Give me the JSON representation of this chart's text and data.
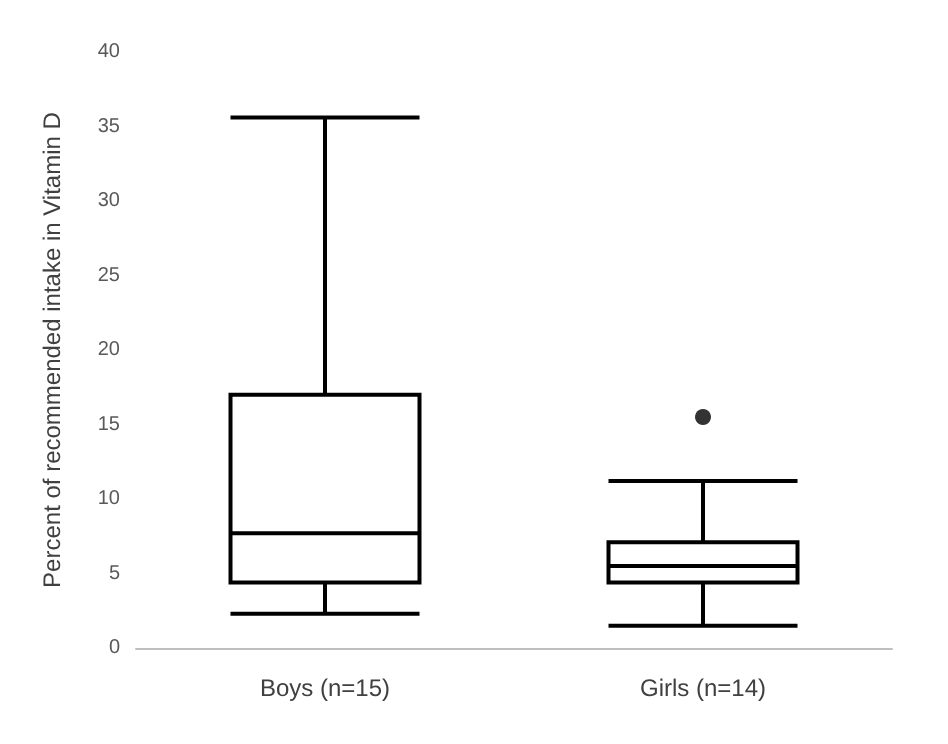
{
  "chart_data": {
    "type": "box",
    "ylabel": "Percent of recommended intake in Vitamin D",
    "categories": [
      "Boys (n=15)",
      "Girls (n=14)"
    ],
    "boxes": [
      {
        "low": 2.3,
        "q1": 4.4,
        "median": 7.7,
        "q3": 17.0,
        "high": 35.6
      },
      {
        "low": 1.5,
        "q1": 4.4,
        "median": 5.5,
        "q3": 7.1,
        "high": 11.2,
        "outliers": [
          15.5
        ]
      }
    ],
    "color": "#000000",
    "ylim": [
      0,
      40
    ],
    "yticks": [
      0,
      5,
      10,
      15,
      20,
      25,
      30,
      35,
      40
    ],
    "grid": false
  }
}
